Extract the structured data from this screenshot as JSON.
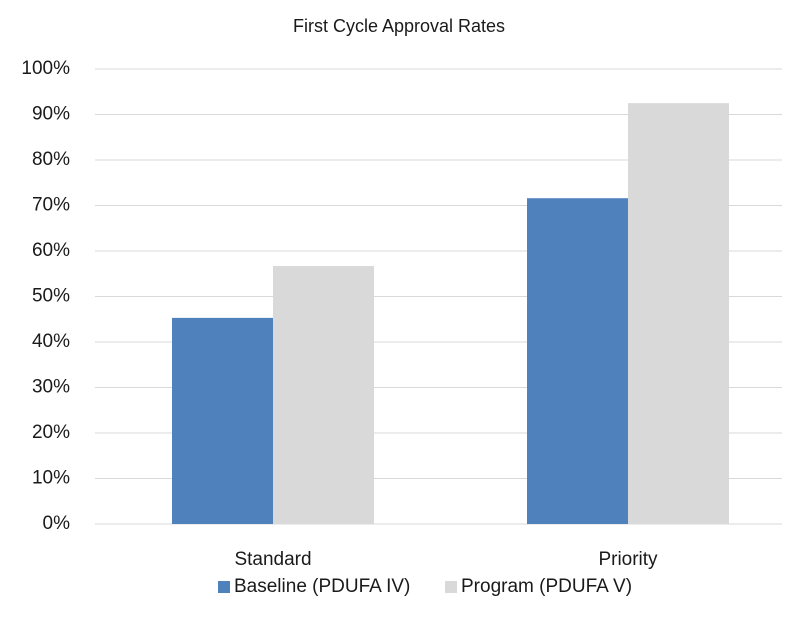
{
  "chart_data": {
    "type": "bar",
    "title": "First Cycle Approval Rates",
    "categories": [
      "Standard",
      "Priority"
    ],
    "series": [
      {
        "name": "Baseline (PDUFA IV)",
        "color": "#4f81bd",
        "values": [
          45.3,
          71.6
        ]
      },
      {
        "name": "Program (PDUFA V)",
        "color": "#d9d9d9",
        "values": [
          56.7,
          92.5
        ]
      }
    ],
    "ylim": [
      0,
      100
    ],
    "yticks": [
      {
        "value": 0,
        "label": "0%"
      },
      {
        "value": 10,
        "label": "10%"
      },
      {
        "value": 20,
        "label": "20%"
      },
      {
        "value": 30,
        "label": "30%"
      },
      {
        "value": 40,
        "label": "40%"
      },
      {
        "value": 50,
        "label": "50%"
      },
      {
        "value": 60,
        "label": "60%"
      },
      {
        "value": 70,
        "label": "70%"
      },
      {
        "value": 80,
        "label": "80%"
      },
      {
        "value": 90,
        "label": "90%"
      },
      {
        "value": 100,
        "label": "100%"
      }
    ],
    "grid": true,
    "legend": "bottom"
  }
}
